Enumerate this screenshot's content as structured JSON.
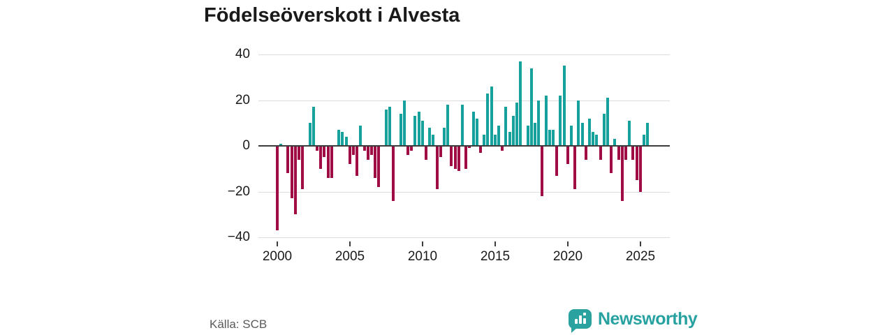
{
  "title": "Födelseöverskott i Alvesta",
  "source": "Källa: SCB",
  "brand": {
    "name": "Newsworthy",
    "logo_icon": "speech-bubble-bar-chart-icon"
  },
  "colors": {
    "positive_bar": "#17a19d",
    "negative_bar": "#a00d45",
    "gridline": "#dcdcdc",
    "zero_line": "#3c3c3c",
    "title_text": "#1a1a1a",
    "axis_text": "#1a1a1a",
    "source_text": "#595959",
    "brand_teal": "#27a2a1",
    "background": "#ffffff"
  },
  "chart_data": {
    "type": "bar",
    "title": "Födelseöverskott i Alvesta",
    "cadence": "quarterly",
    "start": "2000-Q1",
    "end": "2025-Q3",
    "start_year": 2000,
    "xlabel": "",
    "ylabel": "",
    "ylim": [
      -40,
      40
    ],
    "y_ticks": [
      40,
      20,
      0,
      -20,
      -40
    ],
    "y_tick_labels": [
      "40",
      "20",
      "0",
      "−20",
      "−40"
    ],
    "x_tick_years": [
      2000,
      2005,
      2010,
      2015,
      2020,
      2025
    ],
    "x_tick_labels": [
      "2000",
      "2005",
      "2010",
      "2015",
      "2020",
      "2025"
    ],
    "grid": "horizontal-only",
    "legend": "none",
    "values": [
      -37,
      1,
      0,
      -12,
      -23,
      -30,
      -6,
      -19,
      0,
      10,
      17,
      -2,
      -10,
      -5,
      -14,
      -14,
      0,
      7,
      6,
      4,
      -8,
      -4,
      -13,
      9,
      -2,
      -6,
      -4,
      -14,
      -18,
      0,
      16,
      17,
      -24,
      0,
      14,
      20,
      -4,
      -2,
      13,
      15,
      11,
      -6,
      8,
      5,
      -19,
      -5,
      8,
      18,
      -9,
      -10,
      -11,
      18,
      -10,
      -1,
      15,
      12,
      -3,
      5,
      23,
      26,
      5,
      9,
      -2,
      17,
      6,
      13,
      19,
      37,
      0,
      9,
      34,
      10,
      20,
      -22,
      22,
      7,
      7,
      -13,
      22,
      35,
      -8,
      9,
      -19,
      20,
      10,
      -6,
      12,
      6,
      5,
      -6,
      14,
      21,
      -12,
      3,
      -6,
      -24,
      -6,
      11,
      -6,
      -15,
      -20,
      5,
      10
    ]
  }
}
